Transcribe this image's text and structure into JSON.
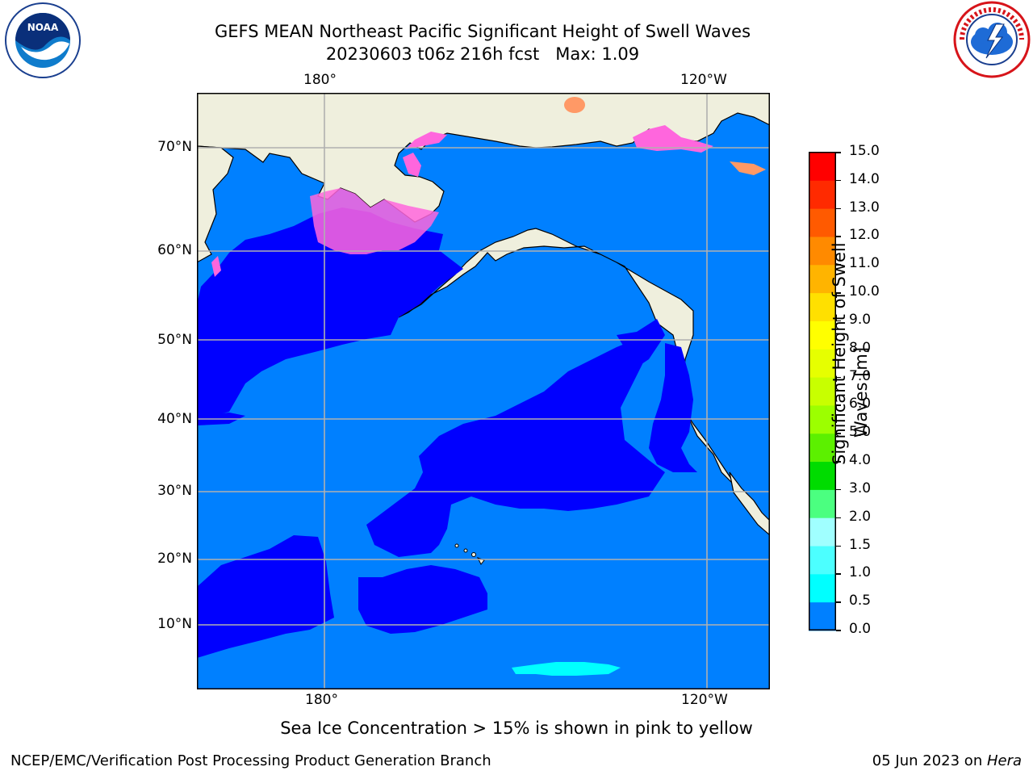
{
  "header": {
    "title_line1": "GEFS MEAN Northeast Pacific Significant Height of Swell Waves",
    "title_line2": "20230603 t06z 216h fcst   Max: 1.09"
  },
  "logos": {
    "left": {
      "name": "NOAA",
      "ring_text": "NATIONAL OCEANIC AND ATMOSPHERIC ADMINISTRATION · U.S. DEPARTMENT OF COMMERCE"
    },
    "right": {
      "ring_text": "NATIONAL WEATHER SERVICE"
    }
  },
  "map": {
    "lon_labels_top": [
      "180°",
      "120°W"
    ],
    "lon_labels_bottom": [
      "180°",
      "120°W"
    ],
    "lat_labels": [
      "70°N",
      "60°N",
      "50°N",
      "40°N",
      "30°N",
      "20°N",
      "10°N"
    ],
    "colors": {
      "land": "#efefdd",
      "wave_0_05": "#0000ff",
      "wave_05_10": "#0080ff",
      "wave_10_15": "#00ffff",
      "grid": "#b0b0b0"
    }
  },
  "colorbar": {
    "ticks": [
      "15.0",
      "14.0",
      "13.0",
      "12.0",
      "11.0",
      "10.0",
      "9.0",
      "8.0",
      "7.0",
      "6.0",
      "5.0",
      "4.0",
      "3.0",
      "2.0",
      "1.5",
      "1.0",
      "0.5",
      "0.0"
    ],
    "colors": [
      "#ff0000",
      "#ff2a00",
      "#ff5a00",
      "#ff8a00",
      "#ffb400",
      "#ffe000",
      "#ffff00",
      "#e6ff00",
      "#c8ff00",
      "#9cff00",
      "#5cf000",
      "#00dc00",
      "#4bff80",
      "#a0ffff",
      "#4cffff",
      "#00ffff",
      "#0080ff",
      "#0000ff"
    ],
    "label_line1": "Significant Height of Swell",
    "label_line2": "Waves [m]"
  },
  "notes": {
    "sea_ice": "Sea Ice Concentration > 15% is shown in pink to yellow",
    "credit": "NCEP/EMC/Verification Post Processing Product Generation Branch",
    "date": "05 Jun 2023 on ",
    "machine": "Hera"
  }
}
